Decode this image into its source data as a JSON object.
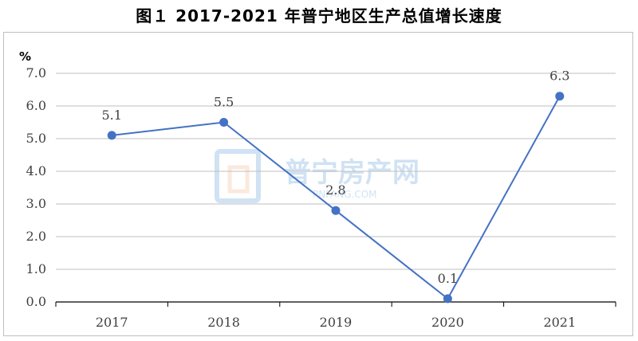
{
  "figure": {
    "title": "图１   2017-2021 年普宁地区生产总值增长速度"
  },
  "watermark": {
    "text": "普宁房产网",
    "subtext": "PNFANG.COM"
  },
  "chart_data": {
    "type": "line",
    "title": "",
    "xlabel": "",
    "ylabel": "%",
    "categories": [
      "2017",
      "2018",
      "2019",
      "2020",
      "2021"
    ],
    "series": [
      {
        "values": [
          5.1,
          5.5,
          2.8,
          0.1,
          6.3
        ],
        "color": "#4472C4"
      }
    ],
    "data_labels": [
      "5.1",
      "5.5",
      "2.8",
      "0.1",
      "6.3"
    ],
    "yticks": [
      "0.0",
      "1.0",
      "2.0",
      "3.0",
      "4.0",
      "5.0",
      "6.0",
      "7.0"
    ],
    "ylim": [
      0,
      7
    ],
    "grid": true,
    "legend": "none"
  }
}
